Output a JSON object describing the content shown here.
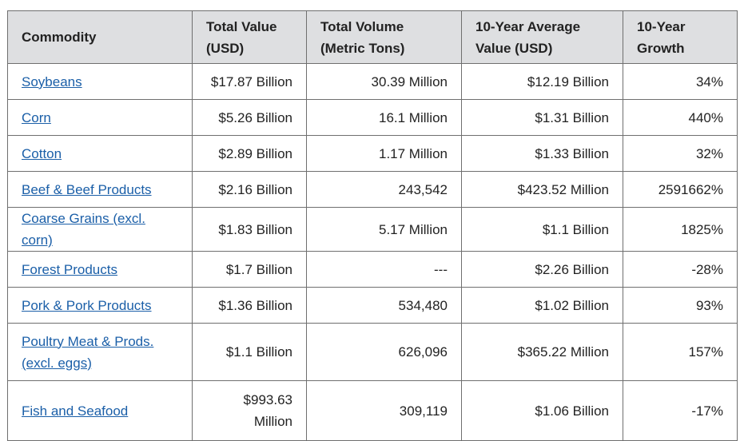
{
  "table": {
    "headers": {
      "commodity": "Commodity",
      "total_value": "Total Value (USD)",
      "total_volume": "Total Volume (Metric Tons)",
      "avg_value": "10-Year Average Value (USD)",
      "growth": "10-Year Growth"
    },
    "rows": [
      {
        "commodity": "Soybeans",
        "total_value": "$17.87 Billion",
        "total_volume": "30.39 Million",
        "avg_value": "$12.19 Billion",
        "growth": "34%"
      },
      {
        "commodity": "Corn",
        "total_value": "$5.26 Billion",
        "total_volume": "16.1 Million",
        "avg_value": "$1.31 Billion",
        "growth": "440%"
      },
      {
        "commodity": "Cotton",
        "total_value": "$2.89 Billion",
        "total_volume": "1.17 Million",
        "avg_value": "$1.33 Billion",
        "growth": "32%"
      },
      {
        "commodity": "Beef & Beef Products",
        "total_value": "$2.16 Billion",
        "total_volume": "243,542",
        "avg_value": "$423.52 Million",
        "growth": "2591662%"
      },
      {
        "commodity": "Coarse Grains (excl. corn)",
        "total_value": "$1.83 Billion",
        "total_volume": "5.17 Million",
        "avg_value": "$1.1 Billion",
        "growth": "1825%"
      },
      {
        "commodity": "Forest Products",
        "total_value": "$1.7 Billion",
        "total_volume": "---",
        "avg_value": "$2.26 Billion",
        "growth": "-28%"
      },
      {
        "commodity": "Pork & Pork Products",
        "total_value": "$1.36 Billion",
        "total_volume": "534,480",
        "avg_value": "$1.02 Billion",
        "growth": "93%"
      },
      {
        "commodity": "Poultry Meat & Prods. (excl. eggs)",
        "total_value": "$1.1 Billion",
        "total_volume": "626,096",
        "avg_value": "$365.22 Million",
        "growth": "157%"
      },
      {
        "commodity": "Fish and Seafood",
        "total_value": "$993.63 Million",
        "total_volume": "309,119",
        "avg_value": "$1.06 Billion",
        "growth": "-17%"
      }
    ]
  }
}
